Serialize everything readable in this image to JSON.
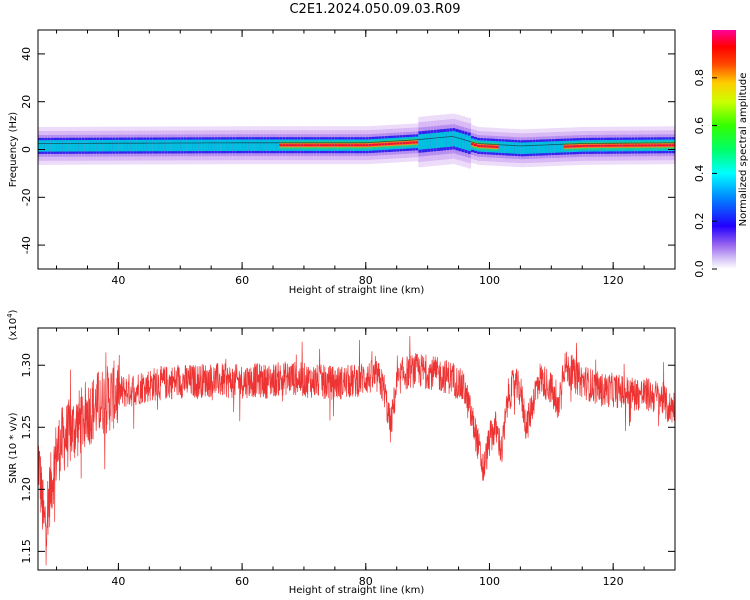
{
  "figure_title": "C2E1.2024.050.09.03.R09",
  "chart_data": [
    {
      "type": "heatmap",
      "title": "",
      "xlabel": "Height of straight line (km)",
      "ylabel": "Frequency (Hz)",
      "xlim": [
        27,
        130
      ],
      "ylim": [
        -50,
        50
      ],
      "xticks": [
        "40",
        "60",
        "80",
        "100",
        "120"
      ],
      "yticks": [
        "-40",
        "-20",
        "0",
        "20",
        "40"
      ],
      "colorbar": {
        "label": "Normalized spectral amplitude",
        "range": [
          0,
          1
        ],
        "ticks": [
          "0.0",
          "0.2",
          "0.4",
          "0.6",
          "0.8"
        ]
      },
      "band": {
        "center_hz": [
          [
            27,
            1.5
          ],
          [
            60,
            1.8
          ],
          [
            80,
            1.8
          ],
          [
            88,
            3.0
          ],
          [
            94,
            4.5
          ],
          [
            98,
            1.5
          ],
          [
            105,
            0.5
          ],
          [
            115,
            1.5
          ],
          [
            130,
            1.8
          ]
        ],
        "peak_regions_km": [
          [
            66,
            88
          ],
          [
            97,
            101
          ],
          [
            112,
            130
          ]
        ]
      }
    },
    {
      "type": "line",
      "title": "",
      "xlabel": "Height of straight line (km)",
      "ylabel": "SNR (10 * v/v)",
      "yscale_note": "(x10",
      "yscale_exp": "4",
      "yscale_close": ")",
      "xlim": [
        27,
        130
      ],
      "ylim": [
        1.135,
        1.33
      ],
      "xticks": [
        "40",
        "60",
        "80",
        "100",
        "120"
      ],
      "yticks": [
        "1.15",
        "1.20",
        "1.25",
        "1.30"
      ],
      "series": [
        {
          "color": "#ee3333",
          "x": [
            27,
            28,
            29,
            30,
            31,
            32,
            33,
            34,
            35,
            36,
            37,
            38,
            39,
            40,
            42,
            44,
            46,
            48,
            50,
            52,
            54,
            56,
            58,
            60,
            62,
            64,
            66,
            68,
            70,
            72,
            74,
            76,
            78,
            80,
            82,
            83,
            84,
            85,
            86,
            88,
            90,
            92,
            94,
            96,
            97,
            98,
            99,
            100,
            101,
            102,
            103,
            104,
            105,
            106,
            108,
            110,
            111,
            112,
            114,
            116,
            118,
            120,
            122,
            124,
            126,
            128,
            129,
            130
          ],
          "y": [
            1.23,
            1.17,
            1.2,
            1.23,
            1.24,
            1.245,
            1.25,
            1.255,
            1.262,
            1.265,
            1.27,
            1.272,
            1.275,
            1.278,
            1.28,
            1.283,
            1.285,
            1.286,
            1.287,
            1.287,
            1.288,
            1.288,
            1.287,
            1.287,
            1.288,
            1.287,
            1.289,
            1.29,
            1.288,
            1.287,
            1.286,
            1.286,
            1.287,
            1.29,
            1.29,
            1.28,
            1.25,
            1.285,
            1.293,
            1.296,
            1.295,
            1.292,
            1.29,
            1.28,
            1.26,
            1.24,
            1.215,
            1.24,
            1.25,
            1.23,
            1.275,
            1.285,
            1.28,
            1.25,
            1.29,
            1.282,
            1.262,
            1.3,
            1.29,
            1.285,
            1.28,
            1.28,
            1.278,
            1.277,
            1.276,
            1.273,
            1.265,
            1.268
          ]
        }
      ]
    }
  ]
}
